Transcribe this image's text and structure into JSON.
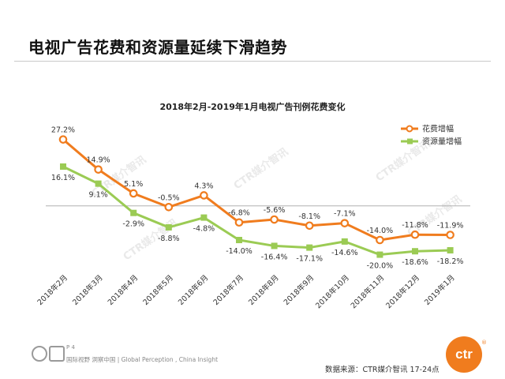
{
  "slide": {
    "title": "电视广告花费和资源量延续下滑趋势",
    "page_num": "P 4",
    "slogan": "国际视野  洞察中国 | Global Perception , China Insight",
    "source": "数据来源：CTR媒介智讯      17-24点",
    "logo_text": "ctr",
    "logo_reg": "®",
    "watermark": "CTR媒介智讯"
  },
  "colors": {
    "spend": "#f07c1e",
    "volume": "#9bcb54",
    "zero_line": "#b0b0b0"
  },
  "chart_data": {
    "type": "line",
    "title": "2018年2月-2019年1月电视广告刊例花费变化",
    "categories": [
      "2018年2月",
      "2018年3月",
      "2018年4月",
      "2018年5月",
      "2018年6月",
      "2018年7月",
      "2018年8月",
      "2018年9月",
      "2018年10月",
      "2018年11月",
      "2018年12月",
      "2019年1月"
    ],
    "ylim": [
      -25,
      30
    ],
    "legend_position": "top-right",
    "series": [
      {
        "name": "花费增幅",
        "values": [
          27.2,
          14.9,
          5.1,
          -0.5,
          4.3,
          -6.8,
          -5.6,
          -8.1,
          -7.1,
          -14.0,
          -11.8,
          -11.9
        ],
        "labels": [
          "27.2%",
          "14.9%",
          "5.1%",
          "-0.5%",
          "4.3%",
          "-6.8%",
          "-5.6%",
          "-8.1%",
          "-7.1%",
          "-14.0%",
          "-11.8%",
          "-11.9%"
        ]
      },
      {
        "name": "资源量增幅",
        "values": [
          16.1,
          9.1,
          -2.9,
          -8.8,
          -4.8,
          -14.0,
          -16.4,
          -17.1,
          -14.6,
          -20.0,
          -18.6,
          -18.2
        ],
        "labels": [
          "16.1%",
          "9.1%",
          "-2.9%",
          "-8.8%",
          "-4.8%",
          "-14.0%",
          "-16.4%",
          "-17.1%",
          "-14.6%",
          "-20.0%",
          "-18.6%",
          "-18.2%"
        ]
      }
    ]
  }
}
